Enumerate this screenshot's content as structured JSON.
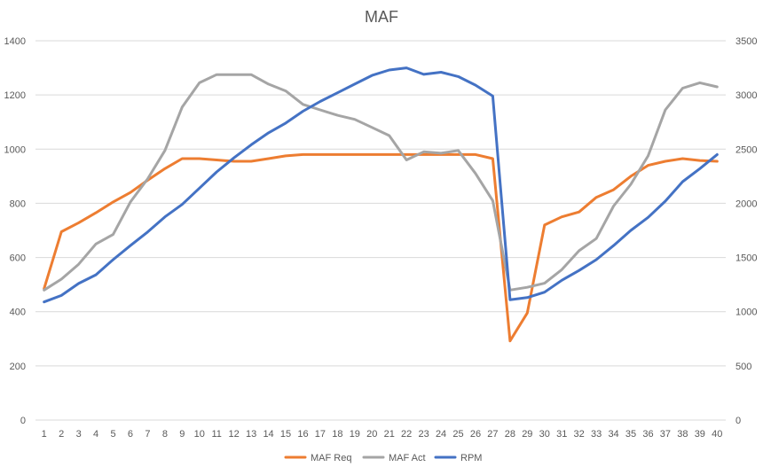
{
  "chart_data": {
    "type": "line",
    "title": "MAF",
    "categories": [
      "1",
      "2",
      "3",
      "4",
      "5",
      "6",
      "7",
      "8",
      "9",
      "10",
      "11",
      "12",
      "13",
      "14",
      "15",
      "16",
      "17",
      "18",
      "19",
      "20",
      "21",
      "22",
      "23",
      "24",
      "25",
      "26",
      "27",
      "28",
      "29",
      "30",
      "31",
      "32",
      "33",
      "34",
      "35",
      "36",
      "37",
      "38",
      "39",
      "40"
    ],
    "y_left": {
      "min": 0,
      "max": 1400,
      "ticks": [
        "0",
        "200",
        "400",
        "600",
        "800",
        "1000",
        "1200",
        "1400"
      ]
    },
    "y_right": {
      "min": 0,
      "max": 3500,
      "ticks": [
        "0",
        "500",
        "1000",
        "1500",
        "2000",
        "2500",
        "3000",
        "3500"
      ]
    },
    "grid": true,
    "legend": "bottom",
    "series": [
      {
        "name": "MAF Req",
        "axis": "left",
        "color": "#ed7d31",
        "values": [
          485,
          695,
          728,
          765,
          805,
          840,
          885,
          928,
          965,
          965,
          960,
          955,
          955,
          965,
          975,
          980,
          980,
          980,
          980,
          980,
          980,
          980,
          980,
          980,
          980,
          980,
          965,
          292,
          395,
          720,
          750,
          768,
          822,
          850,
          900,
          940,
          955,
          965,
          958,
          955
        ]
      },
      {
        "name": "MAF Act",
        "axis": "left",
        "color": "#a5a5a5",
        "values": [
          480,
          520,
          575,
          650,
          685,
          805,
          890,
          995,
          1155,
          1245,
          1275,
          1275,
          1275,
          1240,
          1215,
          1165,
          1145,
          1125,
          1110,
          1080,
          1050,
          960,
          990,
          985,
          995,
          910,
          810,
          480,
          490,
          505,
          555,
          625,
          670,
          790,
          870,
          975,
          1145,
          1225,
          1245,
          1230
        ]
      },
      {
        "name": "RPM",
        "axis": "right",
        "color": "#4472c4",
        "values": [
          1090,
          1150,
          1260,
          1340,
          1480,
          1610,
          1735,
          1875,
          1990,
          2140,
          2290,
          2420,
          2540,
          2650,
          2740,
          2850,
          2940,
          3020,
          3100,
          3180,
          3230,
          3250,
          3190,
          3210,
          3170,
          3090,
          2990,
          1110,
          1130,
          1180,
          1290,
          1380,
          1480,
          1610,
          1750,
          1870,
          2020,
          2200,
          2320,
          2450
        ]
      }
    ]
  }
}
